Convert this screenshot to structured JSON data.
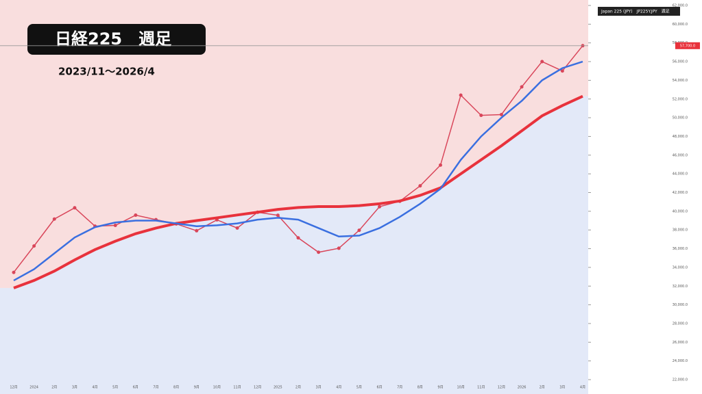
{
  "header": {
    "title": "日経225　週足",
    "subtitle": "2023/11～2026/4",
    "legend": "Japan 225 (JPY)　JP225Y.JPY　週足"
  },
  "chart_data": {
    "type": "line",
    "categories": [
      "12月",
      "2024",
      "2月",
      "3月",
      "4月",
      "5月",
      "6月",
      "7月",
      "8月",
      "9月",
      "10月",
      "11月",
      "12月",
      "2025",
      "2月",
      "3月",
      "4月",
      "5月",
      "6月",
      "7月",
      "8月",
      "9月",
      "10月",
      "11月",
      "12月",
      "2026",
      "2月",
      "3月",
      "4月"
    ],
    "series": [
      {
        "color": "#d9465a",
        "values": [
          33464,
          36287,
          39166,
          40369,
          38406,
          38488,
          39583,
          39101,
          38648,
          37919,
          39081,
          38208,
          39894,
          39572,
          37155,
          35617,
          36045,
          37965,
          40487,
          41069,
          42718,
          44932,
          52411,
          50253,
          50339,
          53300,
          56000,
          55000,
          57700
        ]
      },
      {
        "color": "#e8323c",
        "values": [
          31800,
          32600,
          33600,
          34800,
          35900,
          36800,
          37600,
          38200,
          38700,
          39000,
          39300,
          39600,
          39900,
          40200,
          40400,
          40500,
          40500,
          40600,
          40800,
          41100,
          41700,
          42500,
          44000,
          45500,
          47000,
          48600,
          50200,
          51300,
          52300
        ]
      },
      {
        "color": "#3a6fe0",
        "values": [
          32600,
          33800,
          35500,
          37200,
          38300,
          38800,
          39000,
          39000,
          38700,
          38400,
          38500,
          38700,
          39100,
          39300,
          39100,
          38200,
          37300,
          37400,
          38200,
          39400,
          40800,
          42400,
          45500,
          48000,
          50000,
          51800,
          54000,
          55300,
          56000
        ]
      }
    ],
    "ylim": [
      22000,
      62000
    ],
    "yticks": [
      {
        "value": 22000,
        "label": "22,000.0"
      },
      {
        "value": 24000,
        "label": "24,000.0"
      },
      {
        "value": 26000,
        "label": "26,000.0"
      },
      {
        "value": 28000,
        "label": "28,000.0"
      },
      {
        "value": 30000,
        "label": "30,000.0"
      },
      {
        "value": 32000,
        "label": "32,000.0"
      },
      {
        "value": 34000,
        "label": "34,000.0"
      },
      {
        "value": 36000,
        "label": "36,000.0"
      },
      {
        "value": 38000,
        "label": "38,000.0"
      },
      {
        "value": 40000,
        "label": "40,000.0"
      },
      {
        "value": 42000,
        "label": "42,000.0"
      },
      {
        "value": 44000,
        "label": "44,000.0"
      },
      {
        "value": 46000,
        "label": "46,000.0"
      },
      {
        "value": 48000,
        "label": "48,000.0"
      },
      {
        "value": 50000,
        "label": "50,000.0"
      },
      {
        "value": 52000,
        "label": "52,000.0"
      },
      {
        "value": 54000,
        "label": "54,000.0"
      },
      {
        "value": 56000,
        "label": "56,000.0"
      },
      {
        "value": 58000,
        "label": "58,000.0"
      },
      {
        "value": 60000,
        "label": "60,000.0"
      },
      {
        "value": 62000,
        "label": "62,000.0"
      }
    ],
    "last_price": {
      "value": 57700,
      "label": "57,700.0"
    },
    "grid": false
  }
}
